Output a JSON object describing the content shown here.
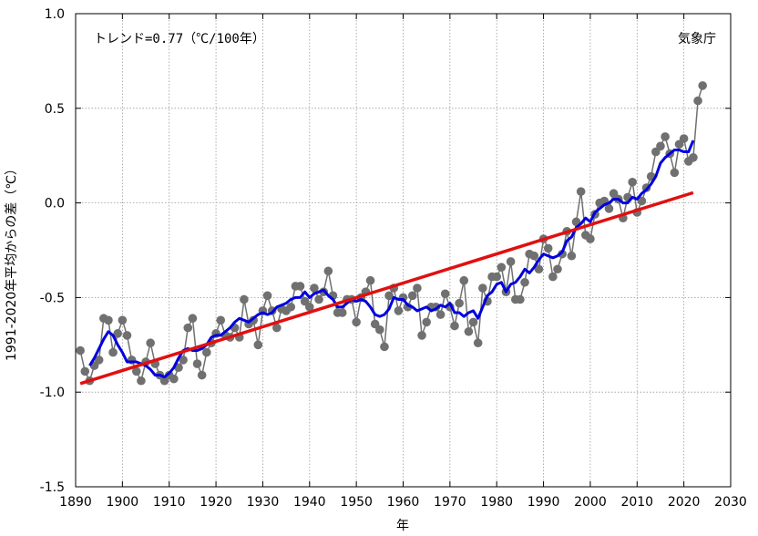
{
  "chart_data": {
    "type": "line",
    "xlabel": "年",
    "ylabel": "1991-2020年平均からの差（℃）",
    "annotation": "トレンド=0.77（℃/100年）",
    "source": "気象庁",
    "xlim": [
      1890,
      2030
    ],
    "ylim": [
      -1.5,
      1.0
    ],
    "x_ticks": [
      1890,
      1900,
      1910,
      1920,
      1930,
      1940,
      1950,
      1960,
      1970,
      1980,
      1990,
      2000,
      2010,
      2020,
      2030
    ],
    "y_ticks": [
      -1.5,
      -1.0,
      -0.5,
      0.0,
      0.5,
      1.0
    ],
    "x_tick_labels": [
      "1890",
      "1900",
      "1910",
      "1920",
      "1930",
      "1940",
      "1950",
      "1960",
      "1970",
      "1980",
      "1990",
      "2000",
      "2010",
      "2020",
      "2030"
    ],
    "y_tick_labels": [
      "-1.5",
      "-1.0",
      "-0.5",
      "0.0",
      "0.5",
      "1.0"
    ],
    "grid": true,
    "colors": {
      "annual": "#707070",
      "moving_average": "#0000dd",
      "trend": "#e01010"
    },
    "series": [
      {
        "style": "points+line",
        "x": [
          1891,
          1892,
          1893,
          1894,
          1895,
          1896,
          1897,
          1898,
          1899,
          1900,
          1901,
          1902,
          1903,
          1904,
          1905,
          1906,
          1907,
          1908,
          1909,
          1910,
          1911,
          1912,
          1913,
          1914,
          1915,
          1916,
          1917,
          1918,
          1919,
          1920,
          1921,
          1922,
          1923,
          1924,
          1925,
          1926,
          1927,
          1928,
          1929,
          1930,
          1931,
          1932,
          1933,
          1934,
          1935,
          1936,
          1937,
          1938,
          1939,
          1940,
          1941,
          1942,
          1943,
          1944,
          1945,
          1946,
          1947,
          1948,
          1949,
          1950,
          1951,
          1952,
          1953,
          1954,
          1955,
          1956,
          1957,
          1958,
          1959,
          1960,
          1961,
          1962,
          1963,
          1964,
          1965,
          1966,
          1967,
          1968,
          1969,
          1970,
          1971,
          1972,
          1973,
          1974,
          1975,
          1976,
          1977,
          1978,
          1979,
          1980,
          1981,
          1982,
          1983,
          1984,
          1985,
          1986,
          1987,
          1988,
          1989,
          1990,
          1991,
          1992,
          1993,
          1994,
          1995,
          1996,
          1997,
          1998,
          1999,
          2000,
          2001,
          2002,
          2003,
          2004,
          2005,
          2006,
          2007,
          2008,
          2009,
          2010,
          2011,
          2012,
          2013,
          2014,
          2015,
          2016,
          2017,
          2018,
          2019,
          2020,
          2021,
          2022,
          2023,
          2024
        ],
        "values": [
          -0.78,
          -0.89,
          -0.94,
          -0.86,
          -0.83,
          -0.61,
          -0.62,
          -0.79,
          -0.69,
          -0.62,
          -0.7,
          -0.83,
          -0.89,
          -0.94,
          -0.84,
          -0.74,
          -0.85,
          -0.91,
          -0.94,
          -0.91,
          -0.93,
          -0.87,
          -0.83,
          -0.66,
          -0.61,
          -0.85,
          -0.91,
          -0.79,
          -0.74,
          -0.69,
          -0.62,
          -0.7,
          -0.71,
          -0.66,
          -0.71,
          -0.51,
          -0.64,
          -0.62,
          -0.75,
          -0.57,
          -0.49,
          -0.57,
          -0.66,
          -0.56,
          -0.57,
          -0.55,
          -0.44,
          -0.44,
          -0.52,
          -0.55,
          -0.45,
          -0.51,
          -0.47,
          -0.36,
          -0.49,
          -0.58,
          -0.58,
          -0.51,
          -0.51,
          -0.63,
          -0.5,
          -0.47,
          -0.41,
          -0.64,
          -0.67,
          -0.76,
          -0.49,
          -0.45,
          -0.57,
          -0.5,
          -0.55,
          -0.49,
          -0.45,
          -0.7,
          -0.63,
          -0.55,
          -0.55,
          -0.59,
          -0.48,
          -0.55,
          -0.65,
          -0.53,
          -0.41,
          -0.68,
          -0.63,
          -0.74,
          -0.45,
          -0.52,
          -0.39,
          -0.39,
          -0.34,
          -0.47,
          -0.31,
          -0.51,
          -0.51,
          -0.42,
          -0.27,
          -0.28,
          -0.35,
          -0.19,
          -0.24,
          -0.39,
          -0.35,
          -0.27,
          -0.15,
          -0.28,
          -0.1,
          0.06,
          -0.17,
          -0.19,
          -0.06,
          0.0,
          0.01,
          -0.03,
          0.05,
          0.02,
          -0.08,
          0.03,
          0.11,
          -0.05,
          0.01,
          0.08,
          0.14,
          0.27,
          0.3,
          0.35,
          0.26,
          0.16,
          0.31,
          0.34,
          0.22,
          0.24,
          0.54,
          0.62
        ]
      },
      {
        "style": "line",
        "x": [
          1893,
          1894,
          1895,
          1896,
          1897,
          1898,
          1899,
          1900,
          1901,
          1902,
          1903,
          1904,
          1905,
          1906,
          1907,
          1908,
          1909,
          1910,
          1911,
          1912,
          1913,
          1914,
          1915,
          1916,
          1917,
          1918,
          1919,
          1920,
          1921,
          1922,
          1923,
          1924,
          1925,
          1926,
          1927,
          1928,
          1929,
          1930,
          1931,
          1932,
          1933,
          1934,
          1935,
          1936,
          1937,
          1938,
          1939,
          1940,
          1941,
          1942,
          1943,
          1944,
          1945,
          1946,
          1947,
          1948,
          1949,
          1950,
          1951,
          1952,
          1953,
          1954,
          1955,
          1956,
          1957,
          1958,
          1959,
          1960,
          1961,
          1962,
          1963,
          1964,
          1965,
          1966,
          1967,
          1968,
          1969,
          1970,
          1971,
          1972,
          1973,
          1974,
          1975,
          1976,
          1977,
          1978,
          1979,
          1980,
          1981,
          1982,
          1983,
          1984,
          1985,
          1986,
          1987,
          1988,
          1989,
          1990,
          1991,
          1992,
          1993,
          1994,
          1995,
          1996,
          1997,
          1998,
          1999,
          2000,
          2001,
          2002,
          2003,
          2004,
          2005,
          2006,
          2007,
          2008,
          2009,
          2010,
          2011,
          2012,
          2013,
          2014,
          2015,
          2016,
          2017,
          2018,
          2019,
          2020,
          2021,
          2022
        ],
        "values": [
          -0.86,
          -0.82,
          -0.77,
          -0.72,
          -0.68,
          -0.7,
          -0.75,
          -0.79,
          -0.84,
          -0.84,
          -0.84,
          -0.85,
          -0.86,
          -0.88,
          -0.91,
          -0.91,
          -0.92,
          -0.9,
          -0.87,
          -0.82,
          -0.78,
          -0.77,
          -0.78,
          -0.78,
          -0.77,
          -0.75,
          -0.71,
          -0.7,
          -0.7,
          -0.68,
          -0.66,
          -0.63,
          -0.61,
          -0.62,
          -0.63,
          -0.61,
          -0.59,
          -0.58,
          -0.59,
          -0.58,
          -0.55,
          -0.54,
          -0.53,
          -0.51,
          -0.5,
          -0.5,
          -0.47,
          -0.5,
          -0.48,
          -0.47,
          -0.46,
          -0.49,
          -0.51,
          -0.55,
          -0.55,
          -0.53,
          -0.51,
          -0.52,
          -0.51,
          -0.52,
          -0.55,
          -0.59,
          -0.6,
          -0.59,
          -0.56,
          -0.5,
          -0.51,
          -0.51,
          -0.54,
          -0.55,
          -0.57,
          -0.56,
          -0.55,
          -0.57,
          -0.56,
          -0.54,
          -0.55,
          -0.53,
          -0.58,
          -0.58,
          -0.6,
          -0.58,
          -0.57,
          -0.61,
          -0.55,
          -0.49,
          -0.47,
          -0.43,
          -0.42,
          -0.47,
          -0.43,
          -0.42,
          -0.39,
          -0.35,
          -0.37,
          -0.34,
          -0.3,
          -0.27,
          -0.28,
          -0.29,
          -0.28,
          -0.26,
          -0.2,
          -0.18,
          -0.13,
          -0.11,
          -0.08,
          -0.1,
          -0.05,
          -0.03,
          -0.01,
          0.0,
          0.02,
          0.02,
          0.0,
          0.0,
          0.03,
          0.02,
          0.05,
          0.07,
          0.1,
          0.14,
          0.21,
          0.24,
          0.26,
          0.28,
          0.28,
          0.27,
          0.27,
          0.33
        ]
      },
      {
        "style": "line",
        "x": [
          1891,
          2022
        ],
        "values": [
          -0.955,
          0.054
        ]
      }
    ]
  }
}
